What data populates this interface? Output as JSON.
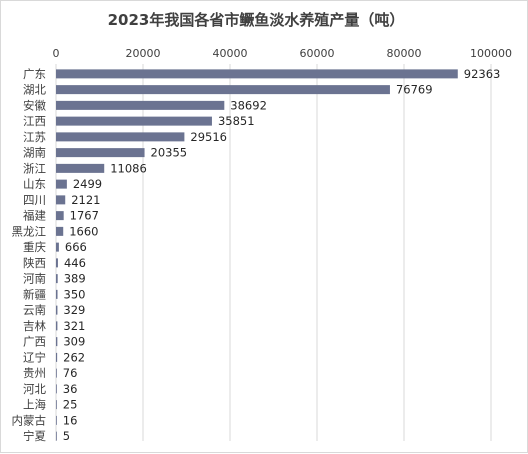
{
  "chart_data": {
    "type": "bar",
    "orientation": "horizontal",
    "title": "2023年我国各省市鳜鱼淡水养殖产量（吨）",
    "axis_position": "top",
    "xlim": [
      0,
      100000
    ],
    "xticks": [
      "0",
      "20000",
      "40000",
      "60000",
      "80000",
      "100000"
    ],
    "grid": true,
    "bar_color": "#6b7391",
    "categories": [
      "广东",
      "湖北",
      "安徽",
      "江西",
      "江苏",
      "湖南",
      "浙江",
      "山东",
      "四川",
      "福建",
      "黑龙江",
      "重庆",
      "陕西",
      "河南",
      "新疆",
      "云南",
      "吉林",
      "广西",
      "辽宁",
      "贵州",
      "河北",
      "上海",
      "内蒙古",
      "宁夏"
    ],
    "values": [
      92363,
      76769,
      38692,
      35851,
      29516,
      20355,
      11086,
      2499,
      2121,
      1767,
      1660,
      666,
      446,
      389,
      350,
      329,
      321,
      309,
      262,
      76,
      36,
      25,
      16,
      5
    ]
  }
}
